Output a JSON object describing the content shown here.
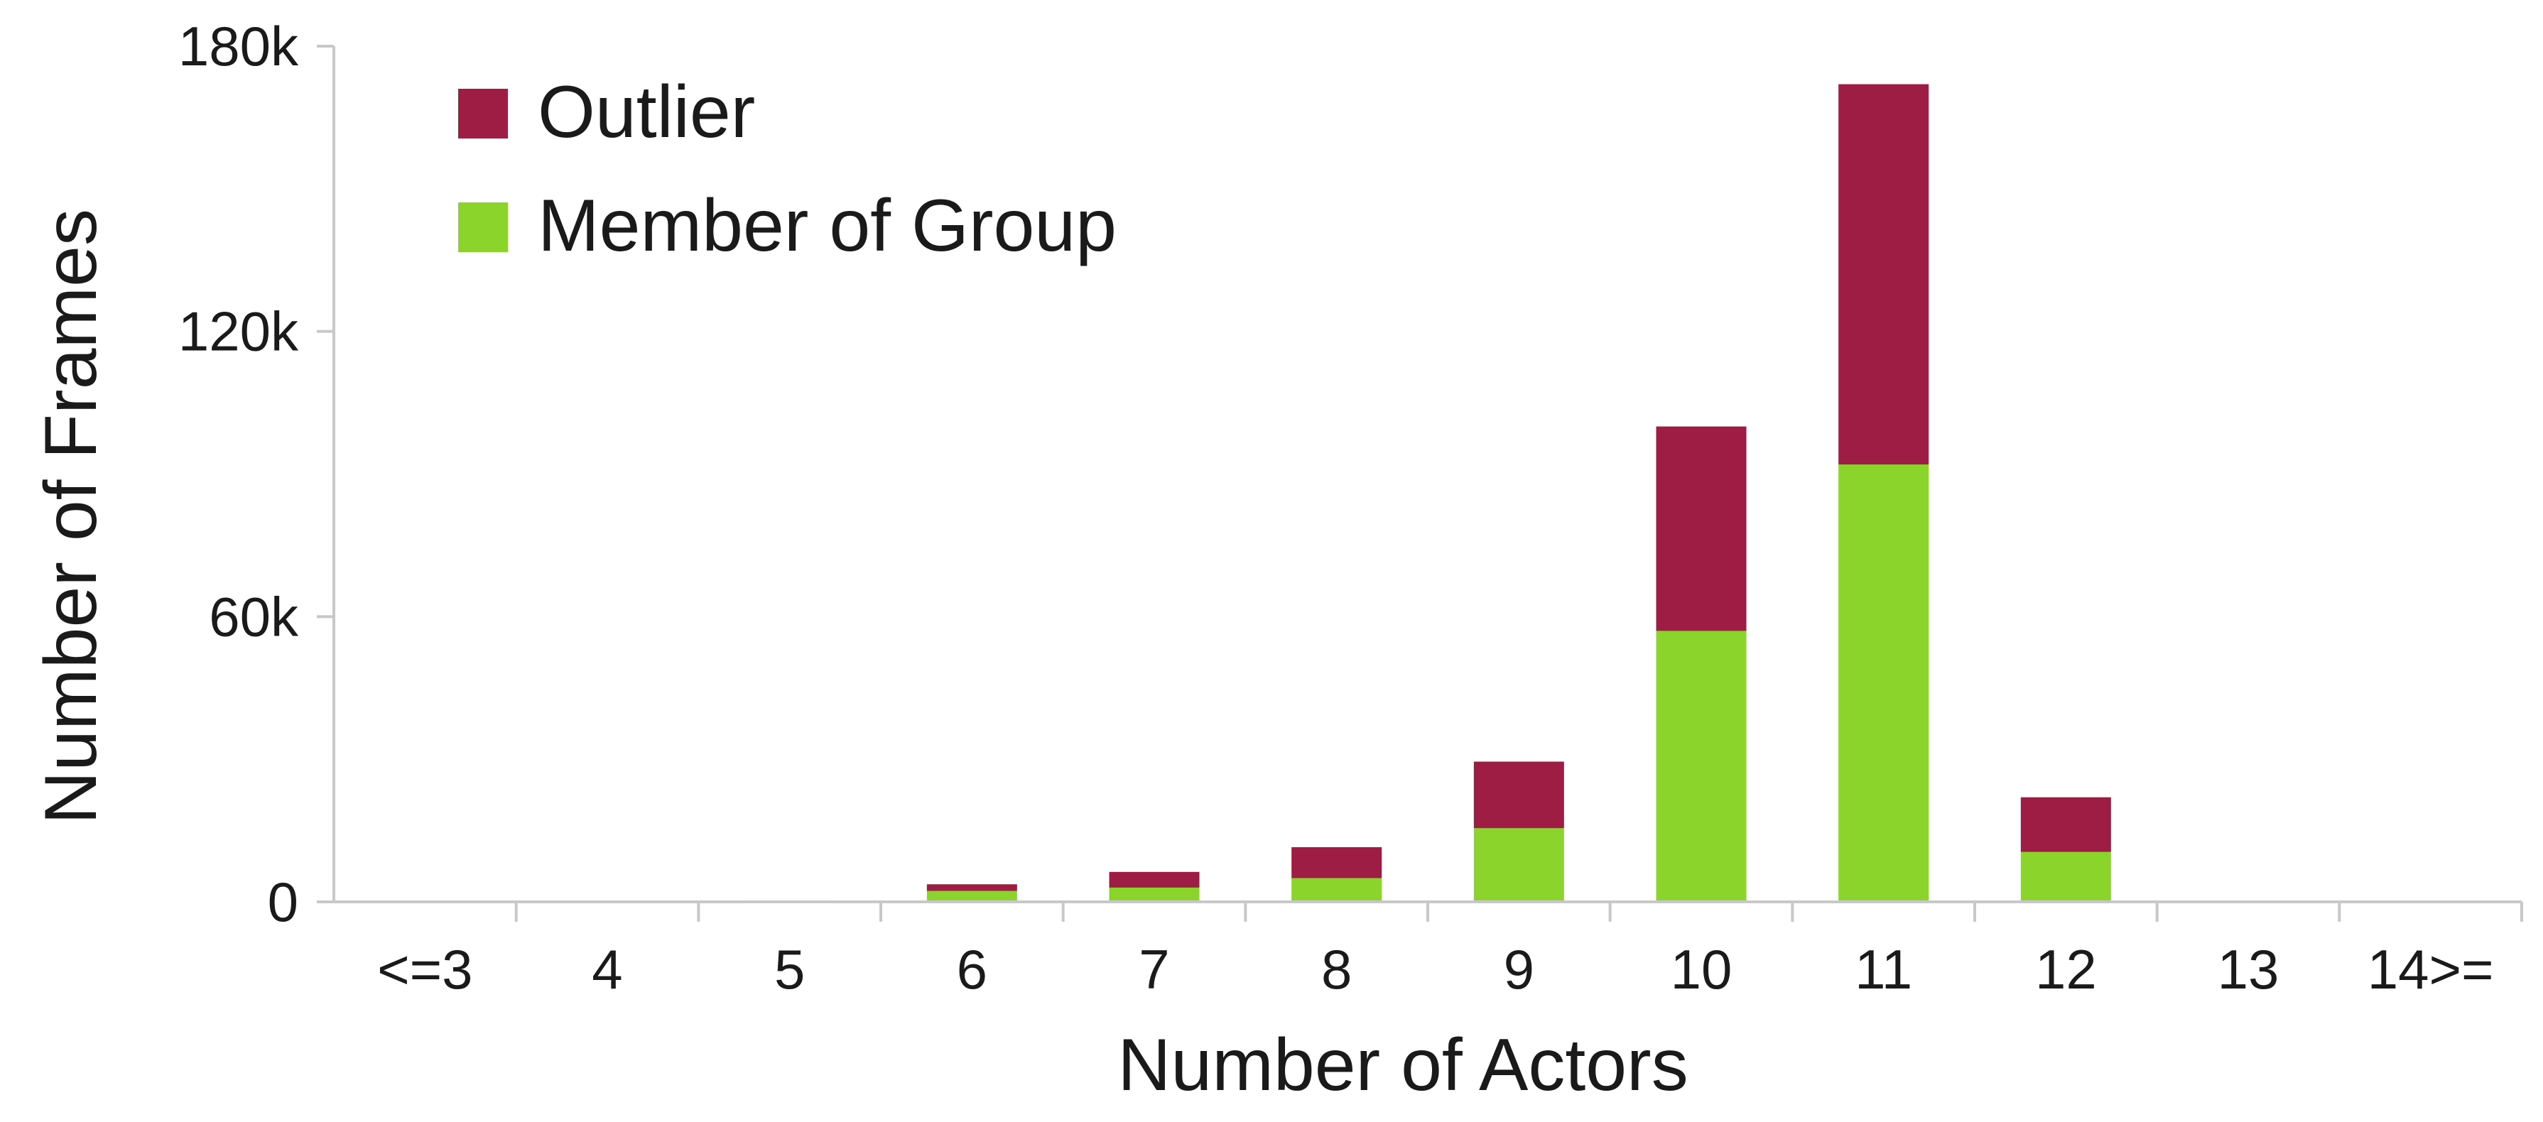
{
  "chart_data": {
    "type": "bar",
    "stacked": true,
    "categories": [
      "<=3",
      "4",
      "5",
      "6",
      "7",
      "8",
      "9",
      "10",
      "11",
      "12",
      "13",
      "14>="
    ],
    "series": [
      {
        "name": "Member of Group",
        "color": "#8ad42b",
        "values": [
          0,
          0,
          200,
          2300,
          3000,
          5000,
          15500,
          57000,
          92000,
          10500,
          150,
          0
        ]
      },
      {
        "name": "Outlier",
        "color": "#9d1d44",
        "values": [
          0,
          0,
          100,
          1400,
          3300,
          6500,
          14000,
          43000,
          80000,
          11500,
          100,
          0
        ]
      }
    ],
    "legend_order": [
      "Outlier",
      "Member of Group"
    ],
    "legend_position": "top-left",
    "xlabel": "Number of Actors",
    "ylabel": "Number of Frames",
    "ylim": [
      0,
      180000
    ],
    "yticks": [
      0,
      60000,
      120000,
      180000
    ],
    "ytick_labels": [
      "0",
      "60k",
      "120k",
      "180k"
    ],
    "grid": false,
    "axis_color": "#c8c8c8"
  }
}
